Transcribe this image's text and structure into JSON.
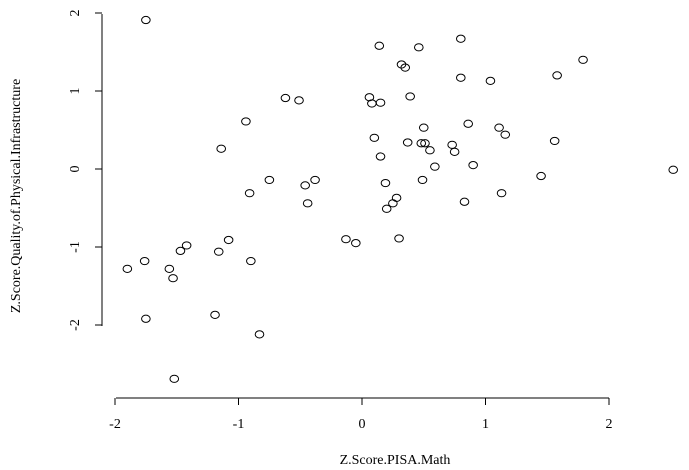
{
  "chart_data": {
    "type": "scatter",
    "xlabel": "Z.Score.PISA.Math",
    "ylabel": "Z.Score.Quality.of.Physical.Infrastructure",
    "xlim": [
      -2,
      2.55
    ],
    "ylim": [
      -2.75,
      2.0
    ],
    "xticks": [
      -2,
      -1,
      0,
      1,
      2
    ],
    "yticks": [
      -2,
      -1,
      0,
      1,
      2
    ],
    "grid": false,
    "points": [
      {
        "x": -1.75,
        "y": 1.91
      },
      {
        "x": -1.9,
        "y": -1.28
      },
      {
        "x": -1.76,
        "y": -1.18
      },
      {
        "x": -1.75,
        "y": -1.92
      },
      {
        "x": -1.56,
        "y": -1.28
      },
      {
        "x": -1.53,
        "y": -1.4
      },
      {
        "x": -1.52,
        "y": -2.69
      },
      {
        "x": -1.47,
        "y": -1.05
      },
      {
        "x": -1.42,
        "y": -0.98
      },
      {
        "x": -1.19,
        "y": -1.87
      },
      {
        "x": -1.16,
        "y": -1.06
      },
      {
        "x": -1.14,
        "y": 0.26
      },
      {
        "x": -1.08,
        "y": -0.91
      },
      {
        "x": -0.94,
        "y": 0.61
      },
      {
        "x": -0.91,
        "y": -0.31
      },
      {
        "x": -0.9,
        "y": -1.18
      },
      {
        "x": -0.83,
        "y": -2.12
      },
      {
        "x": -0.75,
        "y": -0.14
      },
      {
        "x": -0.62,
        "y": 0.91
      },
      {
        "x": -0.51,
        "y": 0.88
      },
      {
        "x": -0.46,
        "y": -0.21
      },
      {
        "x": -0.44,
        "y": -0.44
      },
      {
        "x": -0.38,
        "y": -0.14
      },
      {
        "x": -0.13,
        "y": -0.9
      },
      {
        "x": -0.05,
        "y": -0.95
      },
      {
        "x": 0.06,
        "y": 0.92
      },
      {
        "x": 0.08,
        "y": 0.84
      },
      {
        "x": 0.1,
        "y": 0.4
      },
      {
        "x": 0.14,
        "y": 1.58
      },
      {
        "x": 0.15,
        "y": 0.85
      },
      {
        "x": 0.15,
        "y": 0.16
      },
      {
        "x": 0.19,
        "y": -0.18
      },
      {
        "x": 0.2,
        "y": -0.51
      },
      {
        "x": 0.25,
        "y": -0.44
      },
      {
        "x": 0.28,
        "y": -0.37
      },
      {
        "x": 0.3,
        "y": -0.89
      },
      {
        "x": 0.32,
        "y": 1.34
      },
      {
        "x": 0.35,
        "y": 1.3
      },
      {
        "x": 0.37,
        "y": 0.34
      },
      {
        "x": 0.39,
        "y": 0.93
      },
      {
        "x": 0.46,
        "y": 1.56
      },
      {
        "x": 0.48,
        "y": 0.33
      },
      {
        "x": 0.49,
        "y": -0.14
      },
      {
        "x": 0.5,
        "y": 0.53
      },
      {
        "x": 0.51,
        "y": 0.33
      },
      {
        "x": 0.55,
        "y": 0.24
      },
      {
        "x": 0.59,
        "y": 0.03
      },
      {
        "x": 0.73,
        "y": 0.31
      },
      {
        "x": 0.75,
        "y": 0.22
      },
      {
        "x": 0.8,
        "y": 1.67
      },
      {
        "x": 0.8,
        "y": 1.17
      },
      {
        "x": 0.83,
        "y": -0.42
      },
      {
        "x": 0.86,
        "y": 0.58
      },
      {
        "x": 0.9,
        "y": 0.05
      },
      {
        "x": 1.04,
        "y": 1.13
      },
      {
        "x": 1.11,
        "y": 0.53
      },
      {
        "x": 1.13,
        "y": -0.31
      },
      {
        "x": 1.16,
        "y": 0.44
      },
      {
        "x": 1.45,
        "y": -0.09
      },
      {
        "x": 1.56,
        "y": 0.36
      },
      {
        "x": 1.58,
        "y": 1.2
      },
      {
        "x": 1.79,
        "y": 1.4
      },
      {
        "x": 2.52,
        "y": -0.01
      }
    ]
  }
}
